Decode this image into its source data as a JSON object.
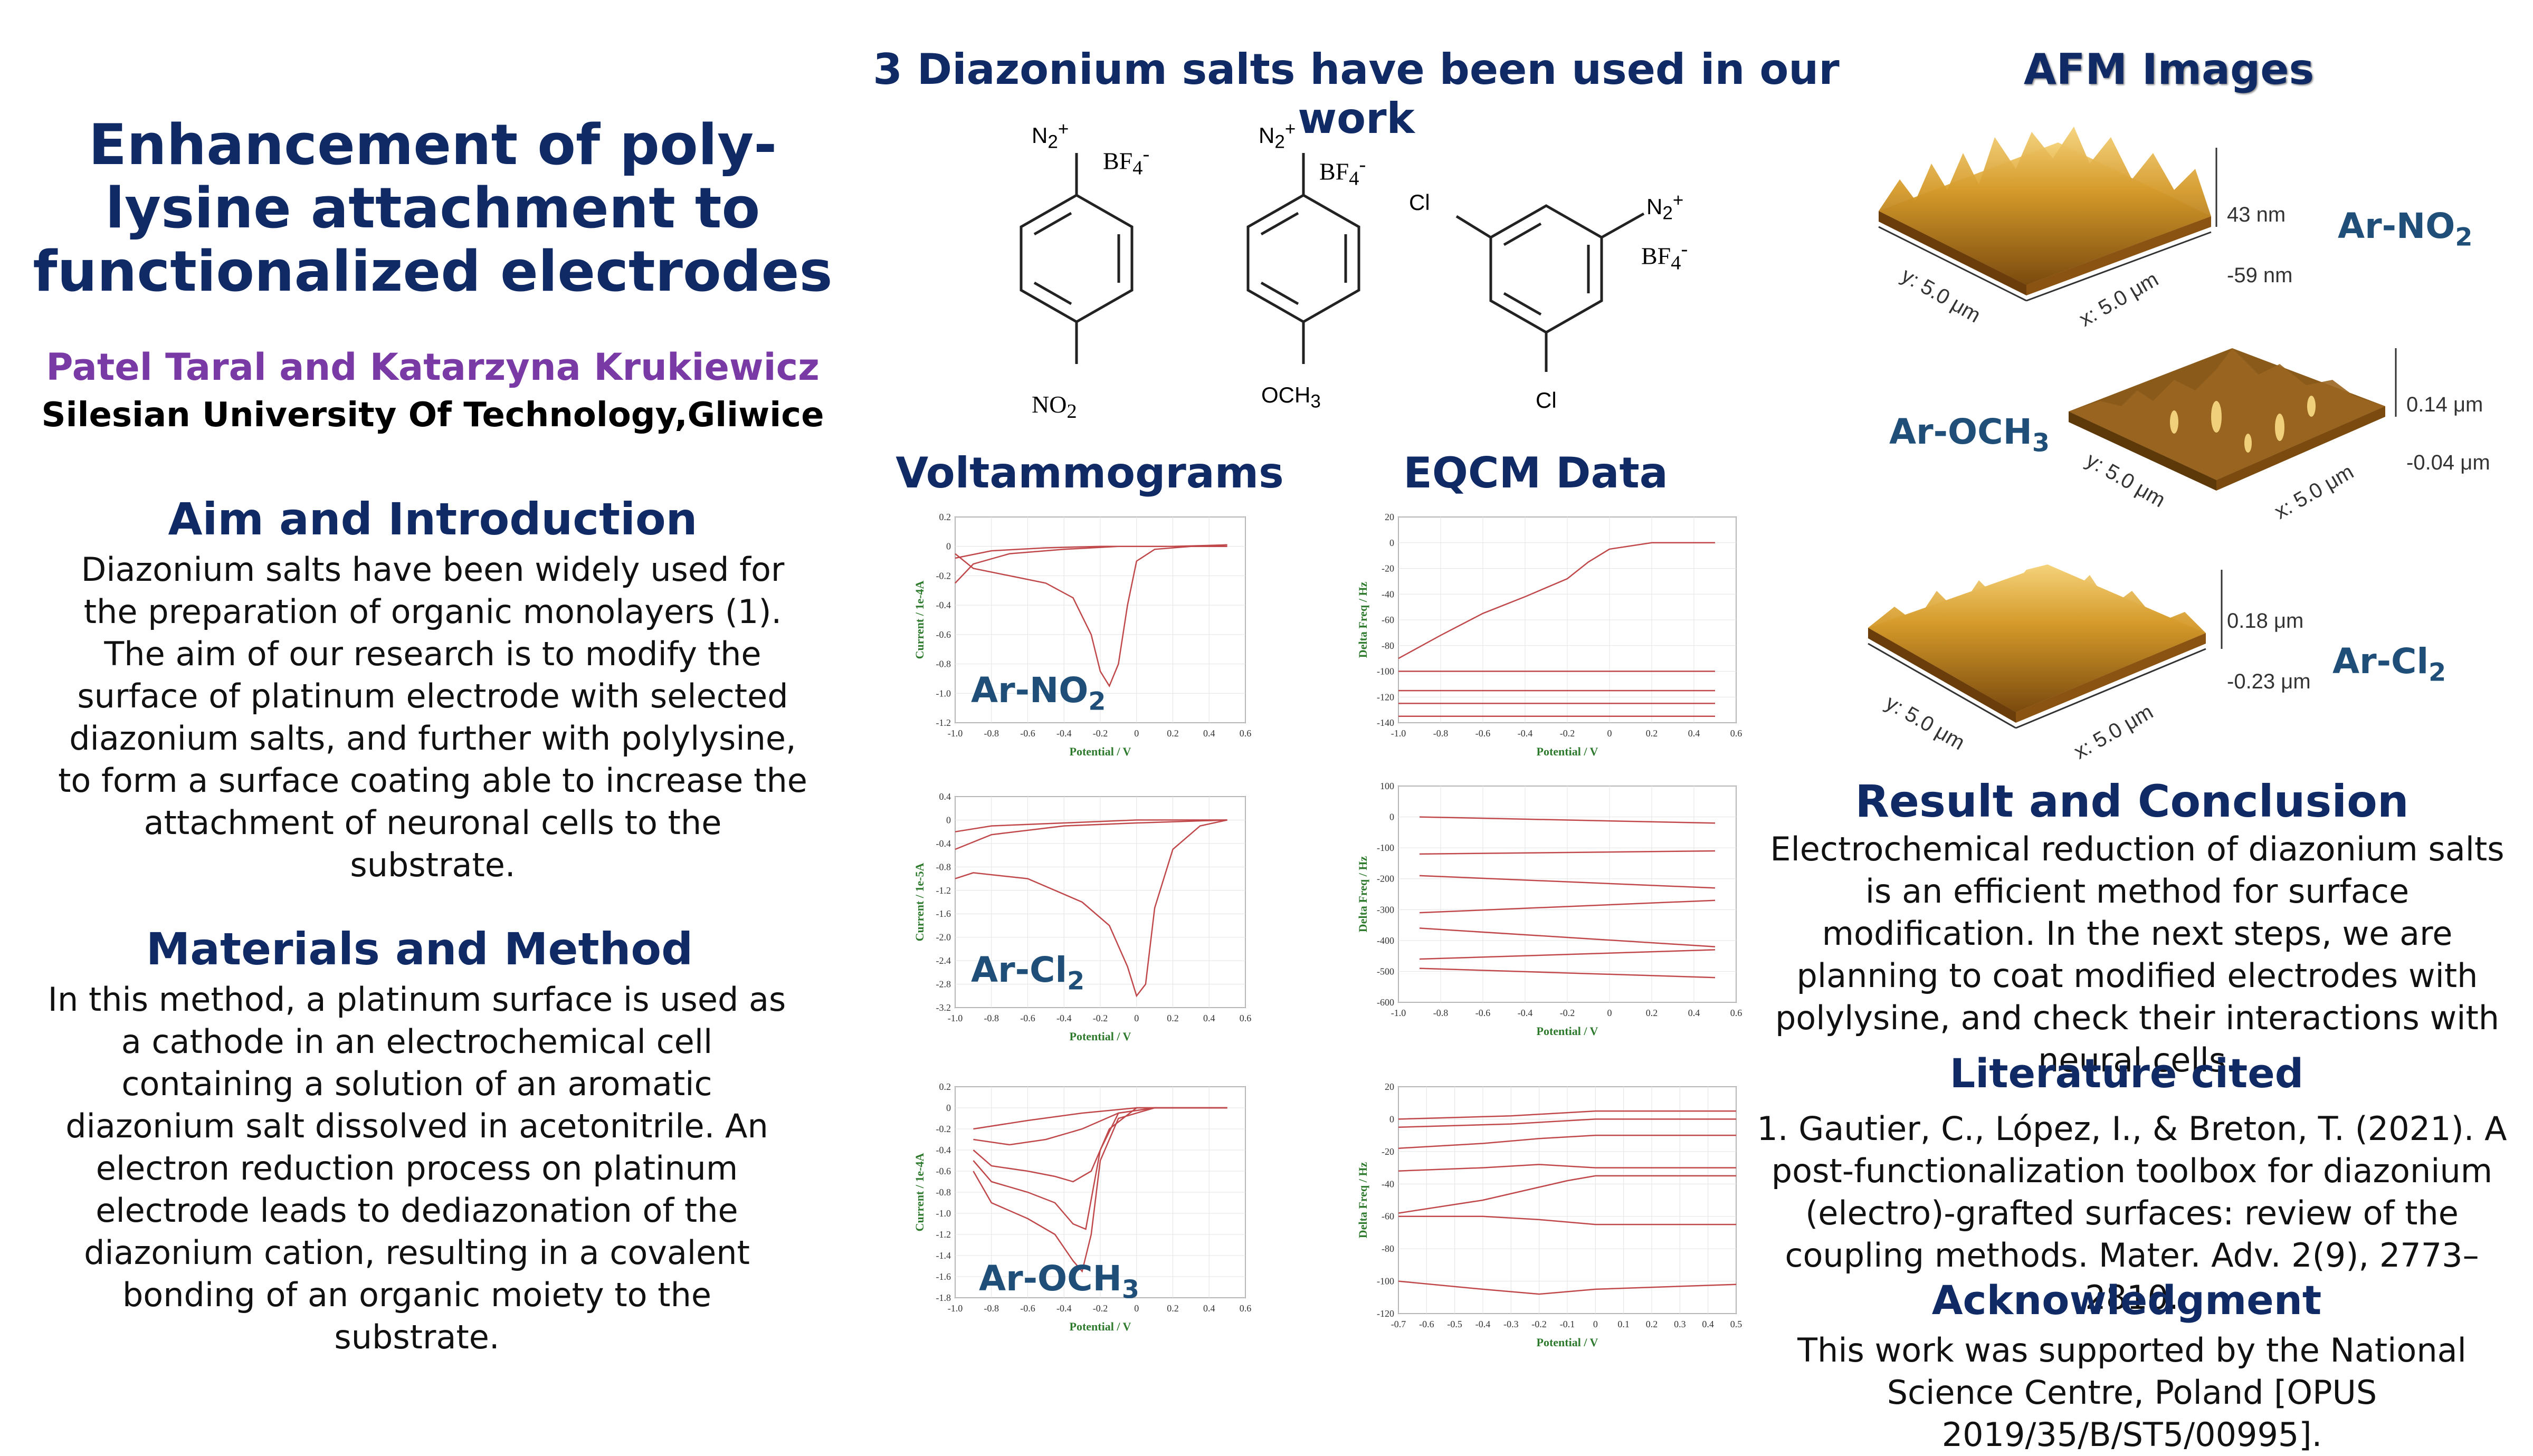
{
  "poster": {
    "title": "Enhancement of poly-lysine attachment to functionalized electrodes",
    "authors": "Patel Taral and Katarzyna Krukiewicz",
    "affiliation": "Silesian University Of Technology,Gliwice"
  },
  "aim": {
    "heading": "Aim and Introduction",
    "text": "Diazonium salts have been widely used for the preparation of organic monolayers (1). The aim of our research is to modify the surface of platinum electrode with selected diazonium salts, and further with polylysine, to form a surface coating able to increase the attachment of neuronal cells to the substrate."
  },
  "methods": {
    "heading": "Materials and Method",
    "text": "In this method, a platinum surface is used as a cathode in an electrochemical cell containing a solution of an aromatic diazonium salt dissolved in acetonitrile. An electron reduction process on platinum electrode leads to dediazonation of the diazonium cation, resulting in a covalent bonding of an organic moiety to the substrate."
  },
  "salts": {
    "heading": "3 Diazonium salts have been used in our work",
    "n2": "N",
    "n2_sub": "2",
    "n2_sup": "+",
    "bf4": "BF",
    "bf4_sub": "4",
    "bf4_sup": "-",
    "sub_no2": "NO",
    "sub_no2_sub": "2",
    "sub_och3": "OCH",
    "sub_och3_sub": "3",
    "cl": "Cl"
  },
  "voltammograms": {
    "heading": "Voltammograms",
    "ylabel_1": "Current / 1e-4A",
    "ylabel_2": "Current / 1e-5A",
    "ylabel_3": "Current / 1e-4A",
    "xlabel": "Potential / V",
    "label_1": "Ar-NO",
    "label_1_sub": "2",
    "label_2": "Ar-Cl",
    "label_2_sub": "2",
    "label_3": "Ar-OCH",
    "label_3_sub": "3"
  },
  "eqcm": {
    "heading": "EQCM Data",
    "ylabel": "Delta Freq / Hz",
    "xlabel": "Potential / V"
  },
  "afm": {
    "heading": "AFM Images",
    "label_1": "Ar-NO",
    "label_1_sub": "2",
    "label_2": "Ar-OCH",
    "label_2_sub": "3",
    "label_3": "Ar-Cl",
    "label_3_sub": "2",
    "y_axis": "y: 5.0 μm",
    "x_axis": "x: 5.0 μm",
    "scale_1_top": "43 nm",
    "scale_1_bot": "-59 nm",
    "scale_2_top": "0.14 μm",
    "scale_2_bot": "-0.04 μm",
    "scale_3_top": "0.18 μm",
    "scale_3_bot": "-0.23 μm"
  },
  "result": {
    "heading": "Result and Conclusion",
    "text": "Electrochemical reduction of diazonium salts is an efficient method for surface modification. In the next steps, we are planning to coat modified electrodes with polylysine, and check their interactions with neural cells."
  },
  "literature": {
    "heading": "Literature cited",
    "text": "1. Gautier, C., López, I., & Breton, T. (2021). A post-functionalization toolbox for diazonium (electro)-grafted surfaces: review of the coupling methods. Mater. Adv. 2(9), 2773–2810."
  },
  "acknowledgment": {
    "heading": "Acknowledgment",
    "text": "This work was supported by the National Science Centre, Poland [OPUS 2019/35/B/ST5/00995]."
  },
  "colors": {
    "navy": "#102a66",
    "purple": "#7a3aa6",
    "label_blue": "#1f4f78",
    "trace_red": "#c0474a",
    "axis_green": "#2d7a2d"
  },
  "chart_data": [
    {
      "type": "line",
      "title": "",
      "xlabel": "Potential / V",
      "ylabel": "Current / 1e-4A",
      "xlim": [
        -1.0,
        0.6
      ],
      "ylim": [
        -1.2,
        0.2
      ],
      "xticks": [
        "-1.0",
        "-0.8",
        "-0.6",
        "-0.4",
        "-0.2",
        "0",
        "0.2",
        "0.4",
        "0.6"
      ],
      "yticks": [
        "0.2",
        "0",
        "-0.2",
        "-0.4",
        "-0.6",
        "-0.8",
        "-1.0",
        "-1.2"
      ],
      "series": [
        {
          "x": [
            -1.0,
            -0.9,
            -0.7,
            -0.5,
            -0.35,
            -0.25,
            -0.2,
            -0.15,
            -0.1,
            -0.05,
            0.0,
            0.1,
            0.3,
            0.5
          ],
          "y": [
            -0.05,
            -0.15,
            -0.2,
            -0.25,
            -0.35,
            -0.6,
            -0.85,
            -0.95,
            -0.8,
            -0.4,
            -0.1,
            -0.02,
            0.0,
            0.0
          ]
        },
        {
          "x": [
            -1.0,
            -0.8,
            -0.5,
            -0.2,
            0.0,
            0.3,
            0.5
          ],
          "y": [
            -0.08,
            -0.03,
            -0.01,
            0.0,
            0.0,
            0.0,
            0.01
          ]
        },
        {
          "x": [
            -1.0,
            -0.9,
            -0.7,
            -0.4,
            -0.1,
            0.2,
            0.5
          ],
          "y": [
            -0.25,
            -0.12,
            -0.05,
            -0.02,
            0.0,
            0.0,
            0.01
          ]
        }
      ]
    },
    {
      "type": "line",
      "title": "",
      "xlabel": "Potential / V",
      "ylabel": "Delta Freq / Hz",
      "xlim": [
        -1.0,
        0.6
      ],
      "ylim": [
        -140,
        20
      ],
      "xticks": [
        "-1.0",
        "-0.8",
        "-0.6",
        "-0.4",
        "-0.2",
        "0",
        "0.2",
        "0.4",
        "0.6"
      ],
      "yticks": [
        "20",
        "0",
        "-20",
        "-40",
        "-60",
        "-80",
        "-100",
        "-120",
        "-140"
      ],
      "series": [
        {
          "x": [
            -1.0,
            -0.8,
            -0.6,
            -0.4,
            -0.2,
            -0.1,
            0.0,
            0.2,
            0.5
          ],
          "y": [
            -90,
            -72,
            -55,
            -42,
            -28,
            -15,
            -5,
            0,
            0
          ]
        },
        {
          "x": [
            -1.0,
            -0.5,
            0.0,
            0.5
          ],
          "y": [
            -100,
            -100,
            -100,
            -100
          ]
        },
        {
          "x": [
            -1.0,
            -0.5,
            0.0,
            0.5
          ],
          "y": [
            -115,
            -115,
            -115,
            -115
          ]
        },
        {
          "x": [
            -1.0,
            -0.5,
            0.0,
            0.5
          ],
          "y": [
            -125,
            -125,
            -125,
            -125
          ]
        },
        {
          "x": [
            -1.0,
            -0.5,
            0.0,
            0.5
          ],
          "y": [
            -135,
            -135,
            -135,
            -135
          ]
        }
      ]
    },
    {
      "type": "line",
      "title": "",
      "xlabel": "Potential / V",
      "ylabel": "Current / 1e-5A",
      "xlim": [
        -1.0,
        0.6
      ],
      "ylim": [
        -3.2,
        0.4
      ],
      "xticks": [
        "-1.0",
        "-0.8",
        "-0.6",
        "-0.4",
        "-0.2",
        "0",
        "0.2",
        "0.4",
        "0.6"
      ],
      "yticks": [
        "0.4",
        "0",
        "-0.4",
        "-0.8",
        "-1.2",
        "-1.6",
        "-2.0",
        "-2.4",
        "-2.8",
        "-3.2"
      ],
      "series": [
        {
          "x": [
            -1.0,
            -0.9,
            -0.6,
            -0.3,
            -0.15,
            -0.05,
            0.0,
            0.05,
            0.1,
            0.2,
            0.35,
            0.5
          ],
          "y": [
            -1.0,
            -0.9,
            -1.0,
            -1.4,
            -1.8,
            -2.5,
            -3.0,
            -2.8,
            -1.5,
            -0.5,
            -0.1,
            0.0
          ]
        },
        {
          "x": [
            -1.0,
            -0.8,
            -0.4,
            0.0,
            0.5
          ],
          "y": [
            -0.5,
            -0.25,
            -0.1,
            -0.05,
            0.0
          ]
        },
        {
          "x": [
            -1.0,
            -0.8,
            -0.4,
            0.0,
            0.5
          ],
          "y": [
            -0.2,
            -0.1,
            -0.05,
            0.0,
            0.0
          ]
        }
      ]
    },
    {
      "type": "line",
      "title": "",
      "xlabel": "Potential / V",
      "ylabel": "Delta Freq / Hz",
      "xlim": [
        -1.0,
        0.6
      ],
      "ylim": [
        -600,
        100
      ],
      "xticks": [
        "-1.0",
        "-0.8",
        "-0.6",
        "-0.4",
        "-0.2",
        "0",
        "0.2",
        "0.4",
        "0.6"
      ],
      "yticks": [
        "100",
        "0",
        "-100",
        "-200",
        "-300",
        "-400",
        "-500",
        "-600"
      ],
      "series": [
        {
          "x": [
            -0.9,
            0.5
          ],
          "y": [
            0,
            -20
          ]
        },
        {
          "x": [
            -0.9,
            0.5
          ],
          "y": [
            -120,
            -110
          ]
        },
        {
          "x": [
            -0.9,
            0.5
          ],
          "y": [
            -190,
            -230
          ]
        },
        {
          "x": [
            -0.9,
            0.5
          ],
          "y": [
            -310,
            -270
          ]
        },
        {
          "x": [
            -0.9,
            0.5
          ],
          "y": [
            -360,
            -420
          ]
        },
        {
          "x": [
            -0.9,
            0.5
          ],
          "y": [
            -460,
            -430
          ]
        },
        {
          "x": [
            -0.9,
            0.5
          ],
          "y": [
            -490,
            -520
          ]
        }
      ]
    },
    {
      "type": "line",
      "title": "",
      "xlabel": "Potential / V",
      "ylabel": "Current / 1e-4A",
      "xlim": [
        -1.0,
        0.6
      ],
      "ylim": [
        -1.8,
        0.2
      ],
      "xticks": [
        "-1.0",
        "-0.8",
        "-0.6",
        "-0.4",
        "-0.2",
        "0",
        "0.2",
        "0.4",
        "0.6"
      ],
      "yticks": [
        "0.2",
        "0",
        "-0.2",
        "-0.4",
        "-0.6",
        "-0.8",
        "-1.0",
        "-1.2",
        "-1.4",
        "-1.6",
        "-1.8"
      ],
      "series": [
        {
          "x": [
            -0.9,
            -0.8,
            -0.6,
            -0.45,
            -0.35,
            -0.3,
            -0.25,
            -0.2,
            -0.1,
            0.1,
            0.5
          ],
          "y": [
            -0.6,
            -0.9,
            -1.05,
            -1.2,
            -1.45,
            -1.55,
            -1.2,
            -0.5,
            -0.1,
            0.0,
            0.0
          ]
        },
        {
          "x": [
            -0.9,
            -0.8,
            -0.6,
            -0.45,
            -0.35,
            -0.28,
            -0.2,
            -0.1,
            0.1,
            0.5
          ],
          "y": [
            -0.5,
            -0.7,
            -0.8,
            -0.9,
            -1.1,
            -1.15,
            -0.4,
            -0.05,
            0.0,
            0.0
          ]
        },
        {
          "x": [
            -0.9,
            -0.8,
            -0.6,
            -0.45,
            -0.35,
            -0.25,
            -0.15,
            0.0,
            0.5
          ],
          "y": [
            -0.4,
            -0.55,
            -0.6,
            -0.65,
            -0.7,
            -0.6,
            -0.2,
            0.0,
            0.0
          ]
        },
        {
          "x": [
            -0.9,
            -0.7,
            -0.5,
            -0.3,
            -0.1,
            0.1,
            0.5
          ],
          "y": [
            -0.3,
            -0.35,
            -0.3,
            -0.2,
            -0.05,
            0.0,
            0.0
          ]
        },
        {
          "x": [
            -0.9,
            -0.6,
            -0.3,
            0.0,
            0.5
          ],
          "y": [
            -0.2,
            -0.12,
            -0.05,
            0.0,
            0.0
          ]
        }
      ]
    },
    {
      "type": "line",
      "title": "",
      "xlabel": "Potential / V",
      "ylabel": "Delta Freq / Hz",
      "xlim": [
        -0.7,
        0.5
      ],
      "ylim": [
        -120,
        20
      ],
      "xticks": [
        "-0.7",
        "-0.6",
        "-0.5",
        "-0.4",
        "-0.3",
        "-0.2",
        "-0.1",
        "0",
        "0.1",
        "0.2",
        "0.3",
        "0.4",
        "0.5"
      ],
      "yticks": [
        "20",
        "0",
        "-20",
        "-40",
        "-60",
        "-80",
        "-100",
        "-120"
      ],
      "series": [
        {
          "x": [
            -0.7,
            -0.3,
            0.0,
            0.5
          ],
          "y": [
            0,
            2,
            5,
            5
          ]
        },
        {
          "x": [
            -0.7,
            -0.3,
            0.0,
            0.5
          ],
          "y": [
            -5,
            -3,
            0,
            0
          ]
        },
        {
          "x": [
            -0.7,
            -0.4,
            -0.2,
            0.0,
            0.5
          ],
          "y": [
            -18,
            -15,
            -12,
            -10,
            -10
          ]
        },
        {
          "x": [
            -0.7,
            -0.4,
            -0.2,
            0.0,
            0.5
          ],
          "y": [
            -32,
            -30,
            -28,
            -30,
            -30
          ]
        },
        {
          "x": [
            -0.7,
            -0.4,
            -0.2,
            -0.1,
            0.0,
            0.5
          ],
          "y": [
            -58,
            -50,
            -42,
            -38,
            -35,
            -35
          ]
        },
        {
          "x": [
            -0.7,
            -0.4,
            -0.2,
            0.0,
            0.5
          ],
          "y": [
            -60,
            -60,
            -62,
            -65,
            -65
          ]
        },
        {
          "x": [
            -0.7,
            -0.4,
            -0.2,
            0.0,
            0.5
          ],
          "y": [
            -100,
            -105,
            -108,
            -105,
            -102
          ]
        }
      ]
    }
  ]
}
